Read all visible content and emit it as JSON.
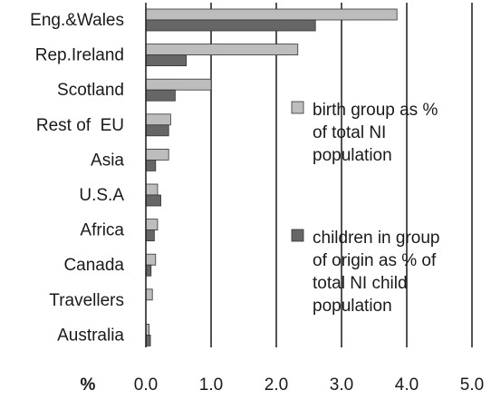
{
  "chart_data": {
    "type": "bar",
    "orientation": "horizontal",
    "categories": [
      "Eng.&Wales",
      "Rep.Ireland",
      "Scotland",
      "Rest of  EU",
      "Asia",
      "U.S.A",
      "Africa",
      "Canada",
      "Travellers",
      "Australia"
    ],
    "series": [
      {
        "name": "birth group as % of total NI population",
        "color": "#bdbdbd",
        "values": [
          3.85,
          2.33,
          1.0,
          0.38,
          0.35,
          0.18,
          0.18,
          0.15,
          0.1,
          0.05
        ]
      },
      {
        "name": "children in group of origin as % of total NI child population",
        "color": "#666666",
        "values": [
          2.6,
          0.62,
          0.45,
          0.35,
          0.15,
          0.23,
          0.13,
          0.08,
          0.0,
          0.07
        ]
      }
    ],
    "x_unit_label": "%",
    "x_ticks": [
      "0.0",
      "1.0",
      "2.0",
      "3.0",
      "4.0",
      "5.0"
    ],
    "xlim": [
      0,
      5
    ],
    "grid": "vertical lines at 1.0 to 5.0",
    "legend": {
      "placement": "right",
      "items": [
        {
          "lines": [
            "birth group as %",
            "of total NI",
            "population"
          ]
        },
        {
          "lines": [
            "children in group",
            "of origin as % of",
            "total NI child",
            "population"
          ]
        }
      ]
    }
  }
}
